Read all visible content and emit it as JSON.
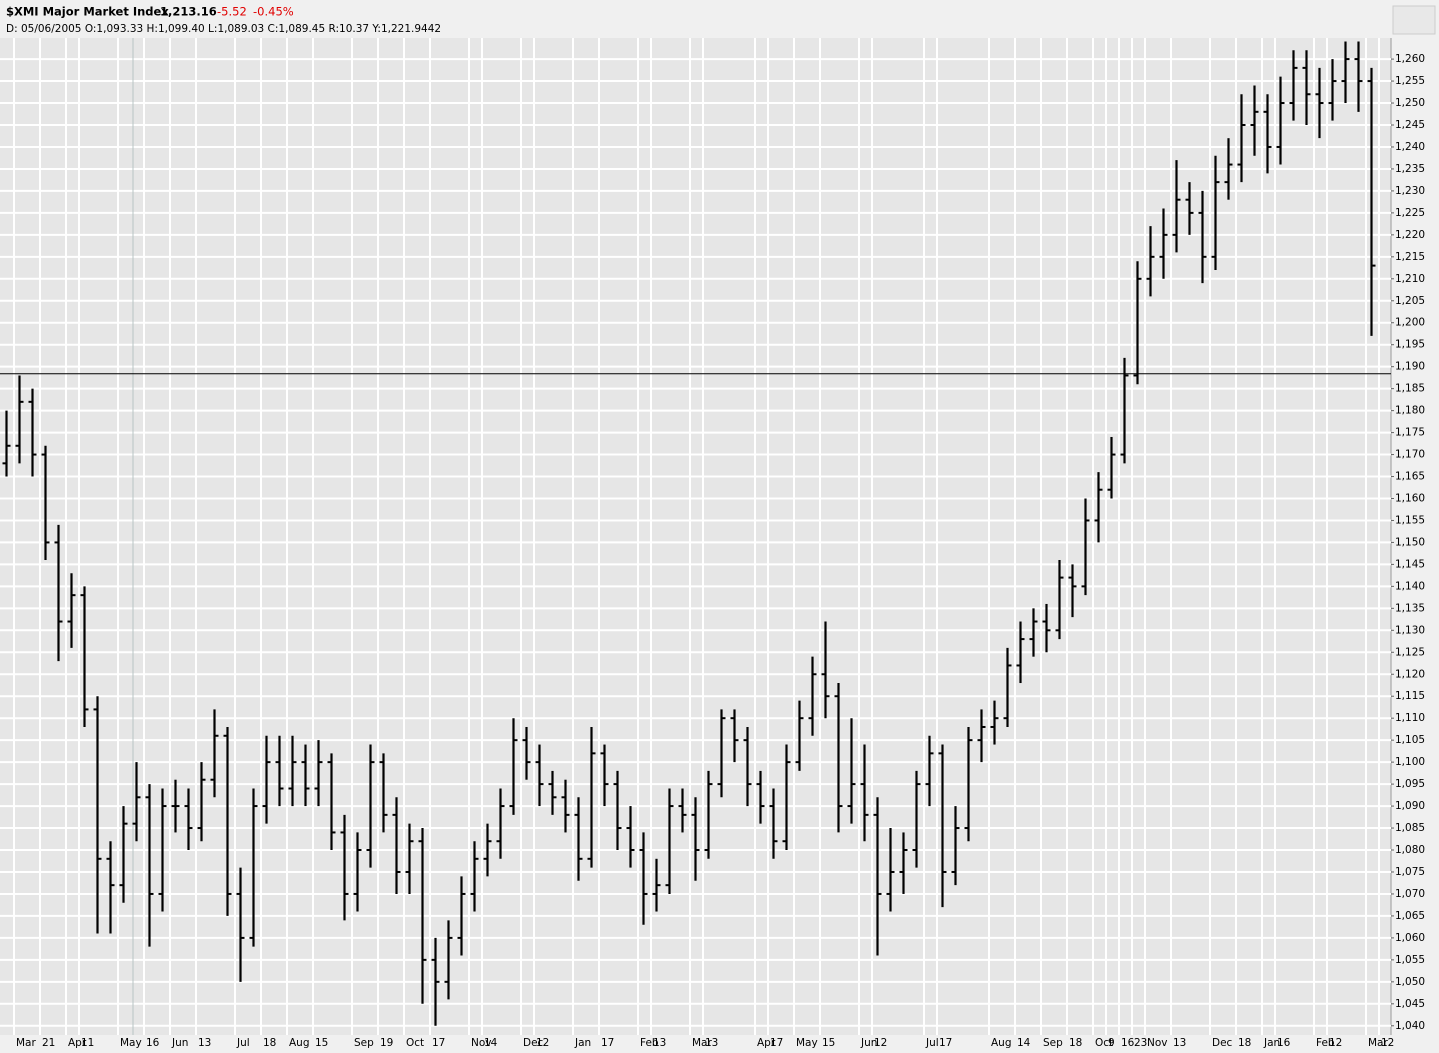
{
  "chart_data": {
    "type": "ohlc",
    "title": "$XMI Major Market Index",
    "last": "1,213.16",
    "change": "-5.52",
    "change_pct": "-0.45%",
    "info": "D: 05/06/2005 O:1,093.33 H:1,099.40 L:1,089.03 C:1,089.45 R:10.37 Y:1,221.9442",
    "color": "#000000",
    "grid": true,
    "hline": 1188.4,
    "categories": [
      null,
      "Mar",
      null,
      "21",
      null,
      "Apr",
      "11",
      null,
      null,
      "May",
      null,
      "16",
      null,
      "Jun",
      null,
      "13",
      null,
      null,
      "Jul",
      null,
      "18",
      null,
      "Aug",
      null,
      "15",
      null,
      null,
      "Sep",
      null,
      "19",
      null,
      "Oct",
      null,
      "17",
      null,
      null,
      "Nov",
      "14",
      null,
      null,
      "Dec",
      "12",
      null,
      null,
      "Jan",
      null,
      "17",
      null,
      null,
      "Feb",
      "13",
      null,
      null,
      "Mar",
      "13",
      null,
      null,
      null,
      "Apr",
      "17",
      null,
      "May",
      null,
      "15",
      null,
      null,
      "Jun",
      "12",
      null,
      null,
      null,
      "Jul",
      "17",
      null,
      null,
      null,
      "Aug",
      null,
      "14",
      null,
      "Sep",
      null,
      "18",
      null,
      "Oct",
      "9",
      "16",
      "23",
      "Nov",
      null,
      "13",
      null,
      null,
      "Dec",
      null,
      "18",
      null,
      "Jan",
      "16",
      null,
      null,
      "Feb",
      "12",
      null,
      null,
      "Mar",
      "12"
    ],
    "open": [
      1168,
      1172,
      1182,
      1170,
      1150,
      1132,
      1138,
      1112,
      1078,
      1072,
      1086,
      1092,
      1070,
      1090,
      1090,
      1085,
      1096,
      1106,
      1070,
      1060,
      1090,
      1100,
      1094,
      1100,
      1094,
      1100,
      1084,
      1070,
      1080,
      1100,
      1088,
      1075,
      1082,
      1055,
      1050,
      1060,
      1070,
      1078,
      1082,
      1090,
      1105,
      1100,
      1095,
      1092,
      1088,
      1078,
      1102,
      1095,
      1085,
      1080,
      1070,
      1072,
      1090,
      1088,
      1080,
      1095,
      1110,
      1105,
      1095,
      1090,
      1082,
      1100,
      1110,
      1120,
      1115,
      1090,
      1095,
      1088,
      1070,
      1075,
      1080,
      1095,
      1102,
      1075,
      1085,
      1105,
      1108,
      1110,
      1122,
      1128,
      1132,
      1130,
      1142,
      1140,
      1155,
      1162,
      1170,
      1188,
      1210,
      1215,
      1220,
      1228,
      1225,
      1215,
      1232,
      1236,
      1245,
      1248,
      1240,
      1250,
      1258,
      1252,
      1250,
      1255,
      1260,
      1255,
      null
    ],
    "high": [
      1180,
      1188,
      1185,
      1172,
      1154,
      1143,
      1140,
      1115,
      1082,
      1090,
      1100,
      1095,
      1094,
      1096,
      1094,
      1100,
      1112,
      1108,
      1076,
      1094,
      1106,
      1106,
      1106,
      1104,
      1105,
      1102,
      1088,
      1084,
      1104,
      1102,
      1092,
      1086,
      1085,
      1060,
      1064,
      1074,
      1082,
      1086,
      1094,
      1110,
      1108,
      1104,
      1098,
      1096,
      1092,
      1108,
      1104,
      1098,
      1090,
      1084,
      1078,
      1094,
      1094,
      1092,
      1098,
      1112,
      1112,
      1108,
      1098,
      1094,
      1104,
      1114,
      1124,
      1132,
      1118,
      1110,
      1104,
      1092,
      1085,
      1084,
      1098,
      1106,
      1104,
      1090,
      1108,
      1112,
      1114,
      1126,
      1132,
      1135,
      1136,
      1146,
      1145,
      1160,
      1166,
      1174,
      1192,
      1214,
      1222,
      1226,
      1237,
      1232,
      1230,
      1238,
      1242,
      1252,
      1254,
      1252,
      1256,
      1262,
      1262,
      1258,
      1260,
      1264,
      1264,
      1258,
      null
    ],
    "low": [
      1165,
      1168,
      1165,
      1146,
      1123,
      1126,
      1108,
      1061,
      1061,
      1068,
      1082,
      1058,
      1066,
      1084,
      1080,
      1082,
      1092,
      1065,
      1050,
      1058,
      1086,
      1090,
      1090,
      1090,
      1090,
      1080,
      1064,
      1066,
      1076,
      1084,
      1070,
      1070,
      1045,
      1040,
      1046,
      1056,
      1066,
      1074,
      1078,
      1088,
      1096,
      1090,
      1088,
      1084,
      1073,
      1076,
      1090,
      1080,
      1076,
      1063,
      1066,
      1070,
      1084,
      1073,
      1078,
      1092,
      1100,
      1090,
      1086,
      1078,
      1080,
      1098,
      1106,
      1110,
      1084,
      1086,
      1082,
      1056,
      1066,
      1070,
      1076,
      1090,
      1067,
      1072,
      1082,
      1100,
      1104,
      1108,
      1118,
      1124,
      1125,
      1128,
      1133,
      1138,
      1150,
      1160,
      1168,
      1186,
      1206,
      1210,
      1216,
      1220,
      1209,
      1212,
      1228,
      1232,
      1238,
      1234,
      1236,
      1246,
      1245,
      1242,
      1246,
      1250,
      1248,
      1197,
      null
    ],
    "close": [
      1172,
      1182,
      1170,
      1150,
      1132,
      1138,
      1112,
      1078,
      1072,
      1086,
      1092,
      1070,
      1090,
      1090,
      1085,
      1096,
      1106,
      1070,
      1060,
      1090,
      1100,
      1094,
      1100,
      1094,
      1100,
      1084,
      1070,
      1080,
      1100,
      1088,
      1075,
      1082,
      1055,
      1050,
      1060,
      1070,
      1078,
      1082,
      1090,
      1105,
      1100,
      1095,
      1092,
      1088,
      1078,
      1102,
      1095,
      1085,
      1080,
      1070,
      1072,
      1090,
      1088,
      1080,
      1095,
      1110,
      1105,
      1095,
      1090,
      1082,
      1100,
      1110,
      1120,
      1115,
      1090,
      1095,
      1088,
      1070,
      1075,
      1080,
      1095,
      1102,
      1075,
      1085,
      1105,
      1108,
      1110,
      1122,
      1128,
      1132,
      1130,
      1142,
      1140,
      1155,
      1162,
      1170,
      1188,
      1210,
      1215,
      1220,
      1228,
      1225,
      1215,
      1232,
      1236,
      1245,
      1248,
      1240,
      1250,
      1258,
      1252,
      1250,
      1255,
      1260,
      1255,
      1213,
      null
    ],
    "ylim": [
      1037.9,
      1264.8
    ],
    "yticks": [
      {
        "value": 1040,
        "label": "1,040"
      },
      {
        "value": 1045,
        "label": "1,045"
      },
      {
        "value": 1050,
        "label": "1,050"
      },
      {
        "value": 1055,
        "label": "1,055"
      },
      {
        "value": 1060,
        "label": "1,060"
      },
      {
        "value": 1065,
        "label": "1,065"
      },
      {
        "value": 1070,
        "label": "1,070"
      },
      {
        "value": 1075,
        "label": "1,075"
      },
      {
        "value": 1080,
        "label": "1,080"
      },
      {
        "value": 1085,
        "label": "1,085"
      },
      {
        "value": 1090,
        "label": "1,090"
      },
      {
        "value": 1095,
        "label": "1,095"
      },
      {
        "value": 1100,
        "label": "1,100"
      },
      {
        "value": 1105,
        "label": "1,105"
      },
      {
        "value": 1110,
        "label": "1,110"
      },
      {
        "value": 1115,
        "label": "1,115"
      },
      {
        "value": 1120,
        "label": "1,120"
      },
      {
        "value": 1125,
        "label": "1,125"
      },
      {
        "value": 1130,
        "label": "1,130"
      },
      {
        "value": 1135,
        "label": "1,135"
      },
      {
        "value": 1140,
        "label": "1,140"
      },
      {
        "value": 1145,
        "label": "1,145"
      },
      {
        "value": 1150,
        "label": "1,150"
      },
      {
        "value": 1155,
        "label": "1,155"
      },
      {
        "value": 1160,
        "label": "1,160"
      },
      {
        "value": 1165,
        "label": "1,165"
      },
      {
        "value": 1170,
        "label": "1,170"
      },
      {
        "value": 1175,
        "label": "1,175"
      },
      {
        "value": 1180,
        "label": "1,180"
      },
      {
        "value": 1185,
        "label": "1,185"
      },
      {
        "value": 1190,
        "label": "1,190"
      },
      {
        "value": 1195,
        "label": "1,195"
      },
      {
        "value": 1200,
        "label": "1,200"
      },
      {
        "value": 1205,
        "label": "1,205"
      },
      {
        "value": 1210,
        "label": "1,210"
      },
      {
        "value": 1215,
        "label": "1,215"
      },
      {
        "value": 1220,
        "label": "1,220"
      },
      {
        "value": 1225,
        "label": "1,225"
      },
      {
        "value": 1230,
        "label": "1,230"
      },
      {
        "value": 1235,
        "label": "1,235"
      },
      {
        "value": 1240,
        "label": "1,240"
      },
      {
        "value": 1245,
        "label": "1,245"
      },
      {
        "value": 1250,
        "label": "1,250"
      },
      {
        "value": 1255,
        "label": "1,255"
      },
      {
        "value": 1260,
        "label": "1,260"
      }
    ]
  }
}
